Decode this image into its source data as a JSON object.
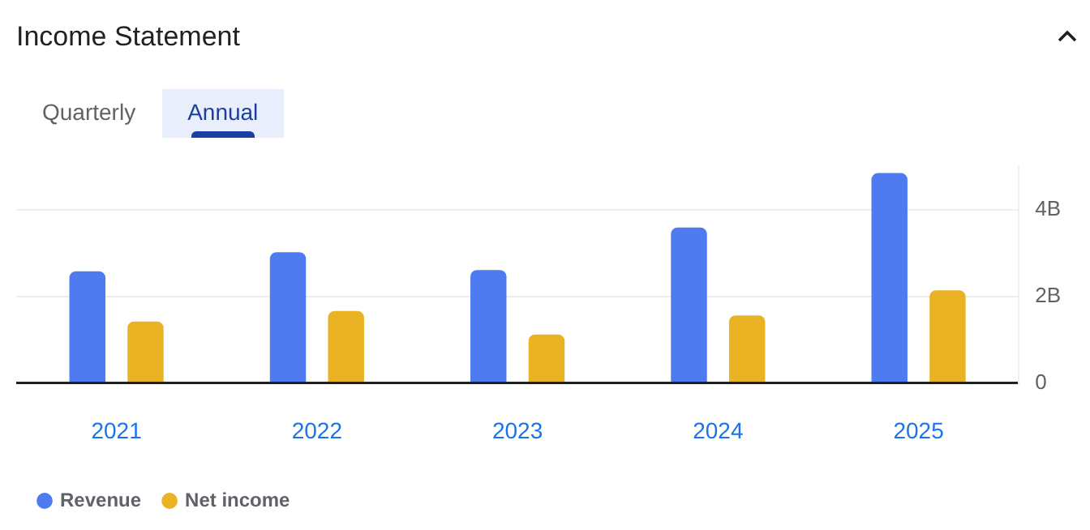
{
  "chart_data": {
    "type": "bar",
    "title": "Income Statement",
    "annotations": [
      "Quarterly",
      "Annual"
    ],
    "categories": [
      "2021",
      "2022",
      "2023",
      "2024",
      "2025"
    ],
    "series": [
      {
        "name": "Revenue",
        "color": "#4e7bef",
        "values": [
          2.58,
          3.02,
          2.61,
          3.59,
          4.85
        ]
      },
      {
        "name": "Net income",
        "color": "#e9b324",
        "values": [
          1.42,
          1.66,
          1.12,
          1.56,
          2.14
        ]
      }
    ],
    "ylim": [
      0,
      5
    ],
    "yticks": [
      0,
      {
        "value": 2,
        "label": "2B"
      },
      {
        "value": 4,
        "label": "4B"
      }
    ],
    "grid": "y",
    "legend": "bottom left"
  }
}
